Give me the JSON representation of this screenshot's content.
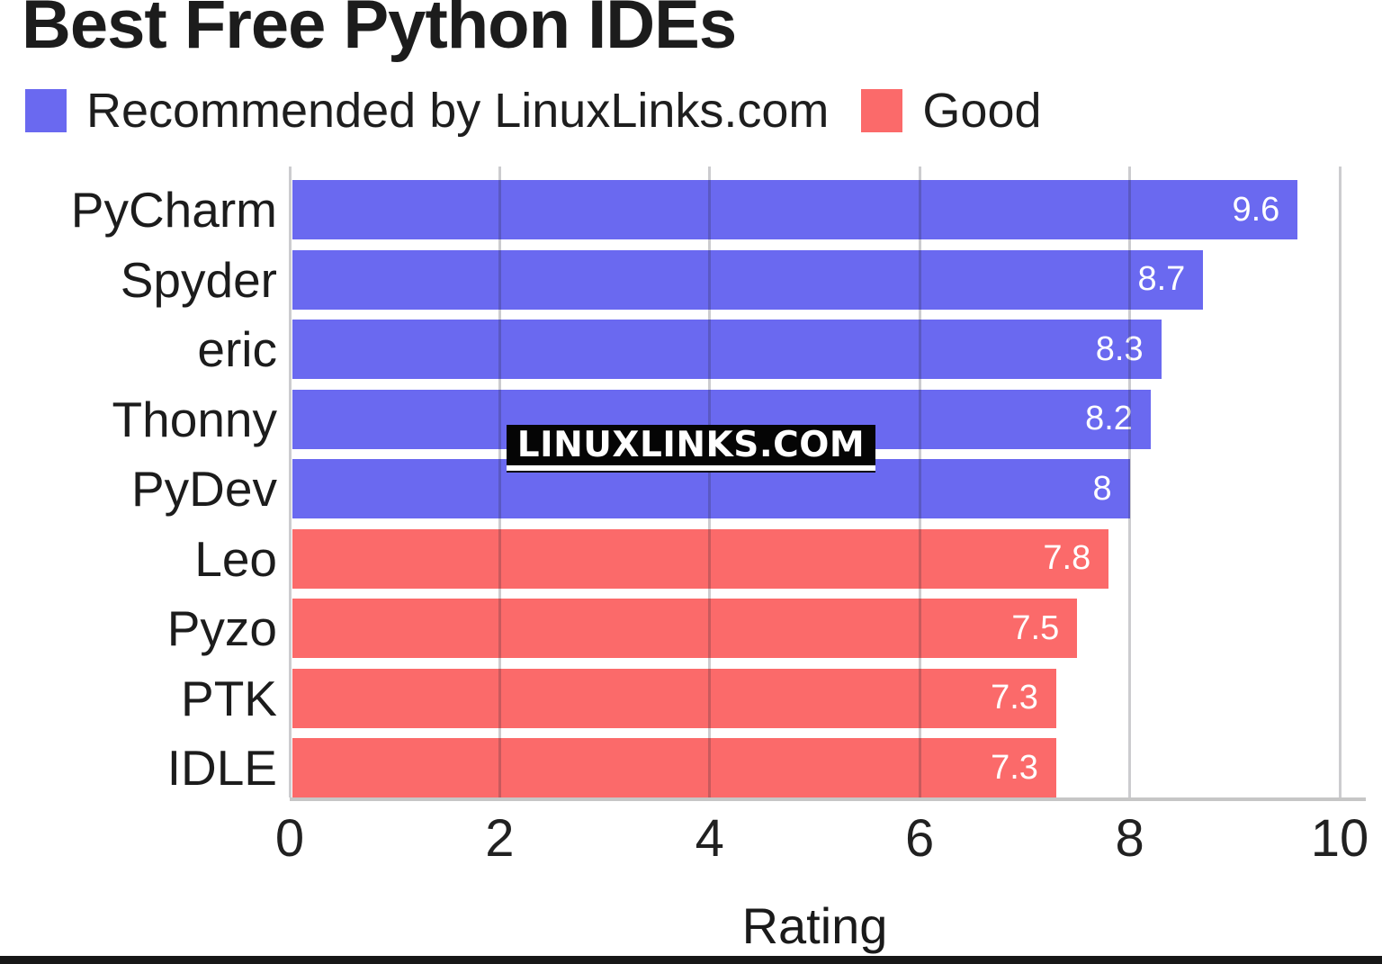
{
  "header": {
    "title": "Best Free Python IDEs"
  },
  "legend": {
    "items": [
      {
        "label": "Recommended by LinuxLinks.com",
        "color": "#6A69F0"
      },
      {
        "label": "Good",
        "color": "#FB6A6A"
      }
    ]
  },
  "watermark": {
    "text": "LINUXLINKS.COM"
  },
  "chart_data": {
    "type": "bar",
    "orientation": "horizontal",
    "title": "Best Free Python IDEs",
    "xlabel": "Rating",
    "xlim": [
      0,
      10
    ],
    "xticks": [
      0,
      2,
      4,
      6,
      8,
      10
    ],
    "grid": true,
    "legend_position": "top",
    "categories": [
      "PyCharm",
      "Spyder",
      "eric",
      "Thonny",
      "PyDev",
      "Leo",
      "Pyzo",
      "PTK",
      "IDLE"
    ],
    "values": [
      9.6,
      8.7,
      8.3,
      8.2,
      8,
      7.8,
      7.5,
      7.3,
      7.3
    ],
    "value_labels": [
      "9.6",
      "8.7",
      "8.3",
      "8.2",
      "8",
      "7.8",
      "7.5",
      "7.3",
      "7.3"
    ],
    "groups": [
      "recommended",
      "recommended",
      "recommended",
      "recommended",
      "recommended",
      "good",
      "good",
      "good",
      "good"
    ],
    "colors": {
      "recommended": "#6A69F0",
      "good": "#FB6A6A"
    },
    "bar_label_color": "#FFFFFF",
    "axis_color": "#C6C6C6",
    "tick_label_color": "#212121"
  }
}
